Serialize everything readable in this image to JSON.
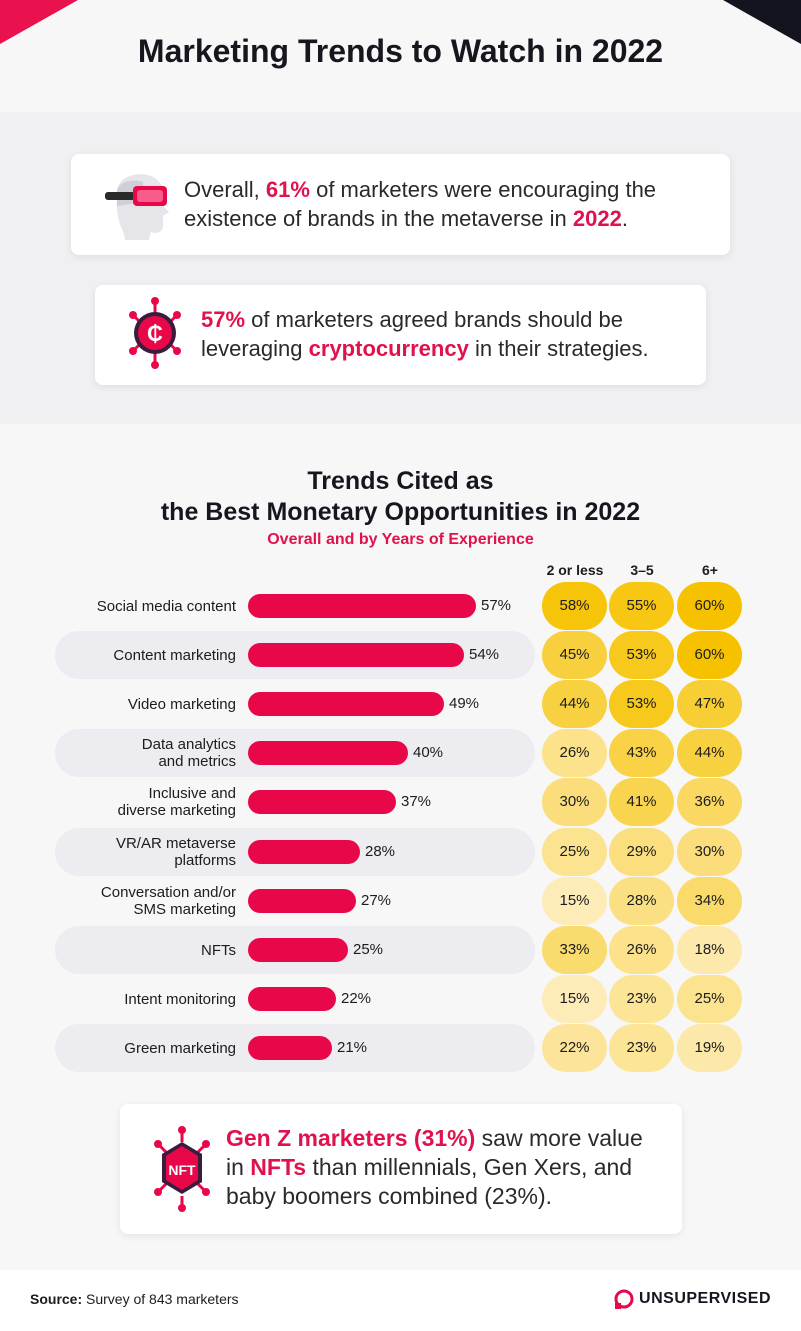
{
  "title": "Marketing Trends to Watch in 2022",
  "stats": [
    {
      "parts": [
        {
          "text": "Overall, ",
          "hl": false
        },
        {
          "text": "61%",
          "hl": true
        },
        {
          "text": " of marketers were encouraging the existence of brands in the metaverse in ",
          "hl": false
        },
        {
          "text": "2022",
          "hl": true
        },
        {
          "text": ".",
          "hl": false
        }
      ],
      "icon": "vr-headset-icon"
    },
    {
      "parts": [
        {
          "text": "57%",
          "hl": true
        },
        {
          "text": " of marketers agreed brands should be leveraging ",
          "hl": false
        },
        {
          "text": "cryptocurrency",
          "hl": true
        },
        {
          "text": " in their strategies.",
          "hl": false
        }
      ],
      "icon": "crypto-coin-icon"
    }
  ],
  "chart_data": {
    "type": "bar",
    "title_line1": "Trends Cited as",
    "title_line2": "the Best Monetary Opportunities in 2022",
    "subtitle": "Overall and by Years of Experience",
    "categories": [
      "Social media content",
      "Content marketing",
      "Video marketing",
      "Data analytics and metrics",
      "Inclusive and diverse marketing",
      "VR/AR metaverse platforms",
      "Conversation and/or SMS marketing",
      "NFTs",
      "Intent monitoring",
      "Green marketing"
    ],
    "label_lines": [
      [
        "Social media content"
      ],
      [
        "Content marketing"
      ],
      [
        "Video marketing"
      ],
      [
        "Data analytics",
        "and metrics"
      ],
      [
        "Inclusive and",
        "diverse marketing"
      ],
      [
        "VR/AR metaverse",
        "platforms"
      ],
      [
        "Conversation and/or",
        "SMS marketing"
      ],
      [
        "NFTs"
      ],
      [
        "Intent monitoring"
      ],
      [
        "Green marketing"
      ]
    ],
    "overall": [
      57,
      54,
      49,
      40,
      37,
      28,
      27,
      25,
      22,
      21
    ],
    "series": [
      {
        "name": "2 or less",
        "values": [
          58,
          45,
          44,
          26,
          30,
          25,
          15,
          33,
          15,
          22
        ]
      },
      {
        "name": "3–5",
        "values": [
          55,
          53,
          53,
          43,
          41,
          29,
          28,
          26,
          23,
          23
        ]
      },
      {
        "name": "6+",
        "values": [
          60,
          60,
          47,
          44,
          36,
          30,
          34,
          18,
          25,
          19
        ]
      }
    ],
    "value_suffix": "%",
    "bar_color": "#e8084a"
  },
  "callout": {
    "parts": [
      {
        "text": "Gen Z marketers (31%)",
        "hl": true
      },
      {
        "text": " saw more value in ",
        "hl": false
      },
      {
        "text": "NFTs",
        "hl": true
      },
      {
        "text": " than millennials, Gen Xers, and baby boomers combined (23%).",
        "hl": false
      }
    ],
    "icon_text": "NFT"
  },
  "footer": {
    "source_label": "Source:",
    "source_text": " Survey of 843 marketers",
    "brand": "UNSUPERVISED"
  },
  "colors": {
    "accent": "#e0124d",
    "dark": "#16161e",
    "heat_low": "#fdecb8",
    "heat_high": "#f6c200"
  }
}
